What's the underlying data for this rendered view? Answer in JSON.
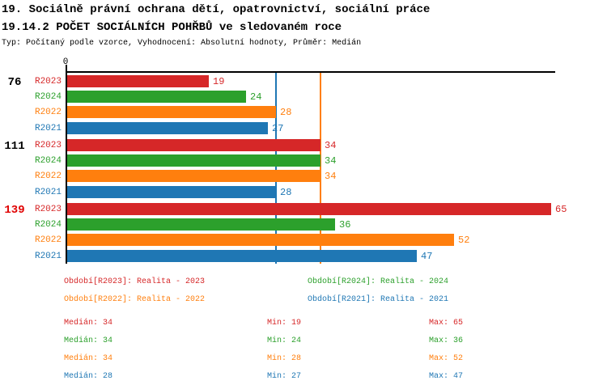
{
  "header": {
    "title": "19. Sociálně právní ochrana dětí, opatrovnictví, sociální práce",
    "subtitle": "19.14.2 POČET SOCIÁLNÍCH POHŘBŮ ve sledovaném roce",
    "meta": "Typ: Počítaný podle vzorce, Vyhodnocení: Absolutní hodnoty, Průměr: Medián"
  },
  "colors": {
    "R2023": "#d62728",
    "R2024": "#2ca02c",
    "R2022": "#ff7f0e",
    "R2021": "#1f77b4",
    "axis": "#000000",
    "highlight_group_label": "#e00000",
    "background": "#ffffff"
  },
  "chart_data": {
    "type": "bar",
    "orientation": "horizontal",
    "x_axis": {
      "origin_label": "0",
      "min": 0,
      "max": 65.7,
      "ticks": [
        "0"
      ],
      "grid": false
    },
    "series_order": [
      "R2023",
      "R2024",
      "R2022",
      "R2021"
    ],
    "groups": [
      {
        "label": "76",
        "highlight": false,
        "bars": [
          {
            "series": "R2023",
            "value": 19
          },
          {
            "series": "R2024",
            "value": 24
          },
          {
            "series": "R2022",
            "value": 28
          },
          {
            "series": "R2021",
            "value": 27
          }
        ]
      },
      {
        "label": "111",
        "highlight": false,
        "bars": [
          {
            "series": "R2023",
            "value": 34
          },
          {
            "series": "R2024",
            "value": 34
          },
          {
            "series": "R2022",
            "value": 34
          },
          {
            "series": "R2021",
            "value": 28
          }
        ]
      },
      {
        "label": "139",
        "highlight": true,
        "bars": [
          {
            "series": "R2023",
            "value": 65
          },
          {
            "series": "R2024",
            "value": 36
          },
          {
            "series": "R2022",
            "value": 52
          },
          {
            "series": "R2021",
            "value": 47
          }
        ]
      }
    ],
    "reference_lines": [
      {
        "series": "R2021",
        "value": 28
      },
      {
        "series": "R2022",
        "value": 34
      }
    ]
  },
  "legend": {
    "items": [
      {
        "series": "R2023",
        "label": "Období[R2023]: Realita - 2023"
      },
      {
        "series": "R2024",
        "label": "Období[R2024]: Realita - 2024"
      },
      {
        "series": "R2022",
        "label": "Období[R2022]: Realita - 2022"
      },
      {
        "series": "R2021",
        "label": "Období[R2021]: Realita - 2021"
      }
    ]
  },
  "stats": {
    "labels": {
      "median": "Medián",
      "min": "Min",
      "max": "Max"
    },
    "rows": [
      {
        "series": "R2023",
        "median": 34,
        "min": 19,
        "max": 65
      },
      {
        "series": "R2024",
        "median": 34,
        "min": 24,
        "max": 36
      },
      {
        "series": "R2022",
        "median": 34,
        "min": 28,
        "max": 52
      },
      {
        "series": "R2021",
        "median": 28,
        "min": 27,
        "max": 47
      }
    ]
  }
}
